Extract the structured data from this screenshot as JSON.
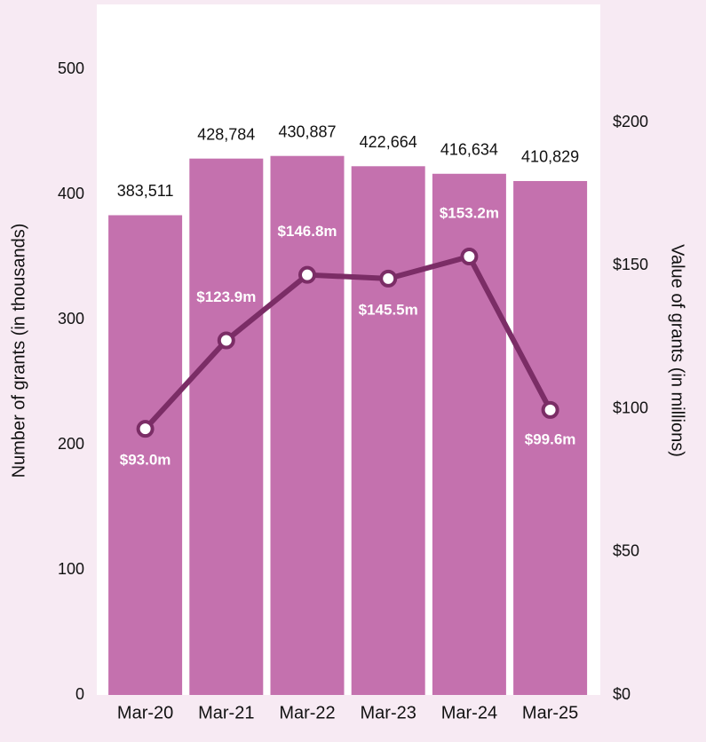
{
  "chart_data": {
    "type": "bar_line",
    "categories": [
      "Mar-20",
      "Mar-21",
      "Mar-22",
      "Mar-23",
      "Mar-24",
      "Mar-25"
    ],
    "ylabel": "Number of grants (in thousands)",
    "y2label": "Value of grants (in millions)",
    "ylim": [
      0,
      552
    ],
    "yticks": [
      0,
      100,
      200,
      300,
      400,
      500
    ],
    "y2lim": [
      0,
      241.3
    ],
    "y2ticks": [
      {
        "value": 0,
        "label": "$0"
      },
      {
        "value": 50,
        "label": "$50"
      },
      {
        "value": 100,
        "label": "$100"
      },
      {
        "value": 150,
        "label": "$150"
      },
      {
        "value": 200,
        "label": "$200"
      }
    ],
    "series": [
      {
        "type": "bar",
        "color": "#c471ae",
        "values": [
          383.511,
          428.784,
          430.887,
          422.664,
          416.634,
          410.829
        ],
        "value_labels": [
          "383,511",
          "428,784",
          "430,887",
          "422,664",
          "416,634",
          "410,829"
        ]
      },
      {
        "type": "line",
        "axis": "y2",
        "color": "#7b2d66",
        "values": [
          93.0,
          123.9,
          146.8,
          145.5,
          153.2,
          99.6
        ],
        "value_labels": [
          "$93.0m",
          "$123.9m",
          "$146.8m",
          "$145.5m",
          "$153.2m",
          "$99.6m"
        ]
      }
    ]
  }
}
